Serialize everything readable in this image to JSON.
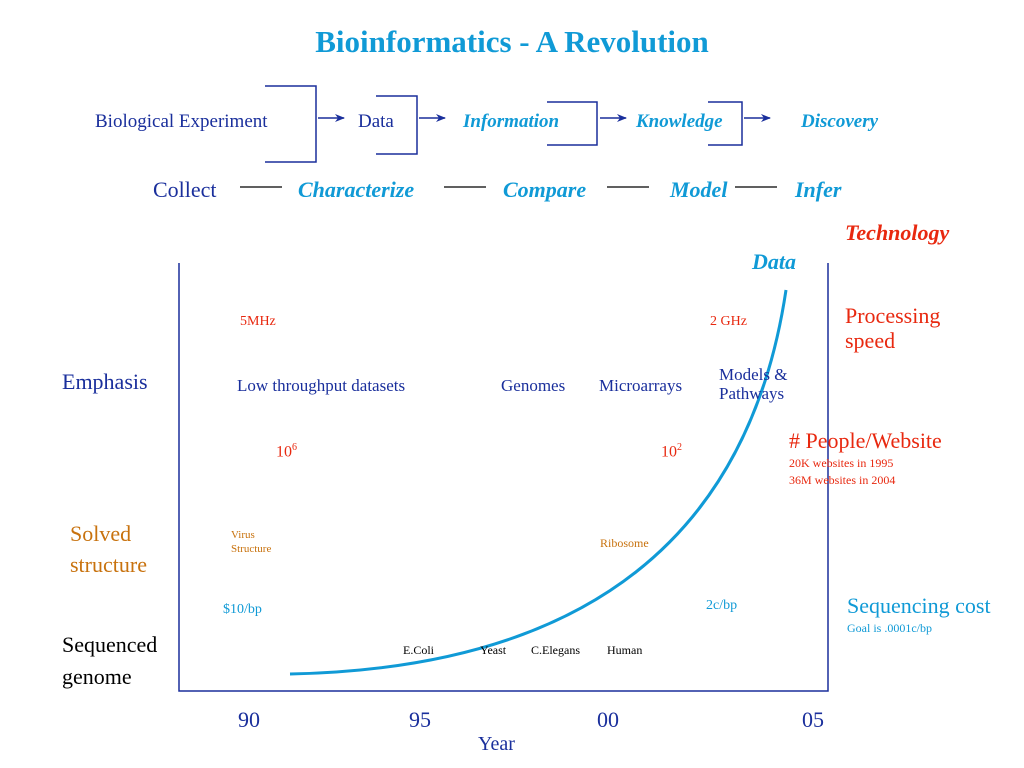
{
  "title": "Bioinformatics -  A Revolution",
  "flow": {
    "steps": [
      "Biological Experiment",
      "Data",
      "Information",
      "Knowledge",
      "Discovery"
    ]
  },
  "process": {
    "steps": [
      "Collect",
      "Characterize",
      "Compare",
      "Model",
      "Infer"
    ]
  },
  "curve_label": "Data",
  "left_labels": {
    "emphasis": "Emphasis",
    "solved_structure": [
      "Solved",
      "structure"
    ],
    "sequenced_genome": [
      "Sequenced",
      "genome"
    ]
  },
  "right_labels": {
    "technology": "Technology",
    "processing_speed": [
      "Processing",
      "speed"
    ],
    "people_website": "# People/Website",
    "websites_1995": "20K websites in 1995",
    "websites_2004": "36M websites in 2004",
    "sequencing_cost": "Sequencing cost",
    "goal": "Goal is .0001c/bp"
  },
  "inner": {
    "speed_start": "5MHz",
    "speed_end": "2 GHz",
    "people_start_base": "10",
    "people_start_exp": "6",
    "people_end_base": "10",
    "people_end_exp": "2",
    "emphasis_items": [
      "Low throughput datasets",
      "Genomes",
      "Microarrays",
      "Models &",
      "Pathways"
    ],
    "structures": [
      "Virus",
      "Structure",
      "Ribosome"
    ],
    "cost_start": "$10/bp",
    "cost_end": "2c/bp",
    "genomes": [
      "E.Coli",
      "Yeast",
      "C.Elegans",
      "Human"
    ]
  },
  "axis": {
    "ticks": [
      "90",
      "95",
      "00",
      "05"
    ],
    "label": "Year"
  },
  "colors": {
    "navy": "#1a2f9c",
    "cyan": "#109ad6",
    "red": "#e8280f",
    "orange": "#c8720e"
  }
}
